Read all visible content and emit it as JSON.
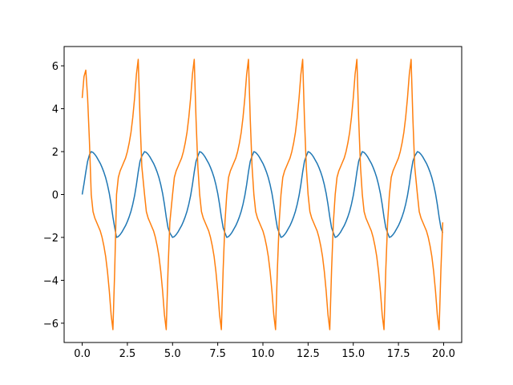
{
  "chart_data": {
    "type": "line",
    "x": [
      0,
      0.1,
      0.2,
      0.3,
      0.4,
      0.5,
      0.6,
      0.7,
      0.8,
      0.9,
      1.0,
      1.1,
      1.2,
      1.3,
      1.4,
      1.5,
      1.6,
      1.7,
      1.8,
      1.9,
      2.0,
      2.1,
      2.2,
      2.3,
      2.4,
      2.5,
      2.6,
      2.7,
      2.8,
      2.9,
      3.0,
      3.1,
      3.2,
      3.3,
      3.45,
      3.55,
      3.65,
      3.75,
      3.85,
      3.95,
      4.05,
      4.15,
      4.25,
      4.35,
      4.45,
      4.55,
      4.65,
      4.75,
      4.85,
      5.0,
      5.1,
      5.2,
      5.3,
      5.4,
      5.5,
      5.6,
      5.7,
      5.8,
      5.9,
      6.0,
      6.1,
      6.2,
      6.3,
      6.4,
      6.5,
      6.6,
      6.7,
      6.8,
      6.9,
      7.0,
      7.1,
      7.2,
      7.3,
      7.4,
      7.5,
      7.6,
      7.7,
      7.8,
      7.9,
      8.0,
      8.1,
      8.2,
      8.3,
      8.4,
      8.5,
      8.6,
      8.7,
      8.8,
      8.9,
      9.0,
      9.1,
      9.2,
      9.3,
      9.4,
      9.5,
      9.6,
      9.7,
      9.8,
      9.9,
      10.0,
      10.1,
      10.2,
      10.3,
      10.4,
      10.5,
      10.6,
      10.7,
      10.8,
      10.9,
      11.0,
      11.1,
      11.2,
      11.3,
      11.4,
      11.5,
      11.6,
      11.7,
      11.8,
      11.9,
      12.0,
      12.1,
      12.2,
      12.3,
      12.4,
      12.5,
      12.6,
      12.7,
      12.8,
      12.9,
      13.0,
      13.1,
      13.2,
      13.3,
      13.4,
      13.5,
      13.6,
      13.7,
      13.8,
      13.9,
      14.0,
      14.1,
      14.2,
      14.3,
      14.4,
      14.5,
      14.6,
      14.7,
      14.8,
      14.9,
      15.0,
      15.1,
      15.2,
      15.3,
      15.4,
      15.5,
      15.6,
      15.7,
      15.8,
      15.9,
      16.0,
      16.1,
      16.2,
      16.3,
      16.4,
      16.5,
      16.6,
      16.7,
      16.8,
      16.9,
      17.0,
      17.1,
      17.2,
      17.3,
      17.4,
      17.5,
      17.6,
      17.7,
      17.8,
      17.9,
      18.0,
      18.1,
      18.2,
      18.3,
      18.4,
      18.55,
      18.65,
      18.75,
      18.85,
      18.95,
      19.05,
      19.15,
      19.25,
      19.35,
      19.45,
      19.55,
      19.65,
      19.75,
      19.85,
      19.95
    ],
    "series": [
      {
        "color": "#1f77b4",
        "values": [
          0,
          0.5,
          1.05,
          1.55,
          1.85,
          2,
          1.96,
          1.87,
          1.75,
          1.6,
          1.45,
          1.26,
          1.04,
          0.78,
          0.45,
          0.05,
          -0.46,
          -1.05,
          -1.55,
          -2,
          -1.96,
          -1.87,
          -1.75,
          -1.6,
          -1.45,
          -1.26,
          -1.04,
          -0.78,
          -0.45,
          -0.05,
          0.46,
          1.05,
          1.55,
          1.79,
          2,
          1.96,
          1.87,
          1.75,
          1.6,
          1.45,
          1.26,
          1.04,
          0.78,
          0.45,
          0.05,
          -0.46,
          -1.05,
          -1.55,
          -1.79,
          -2,
          -1.96,
          -1.87,
          -1.75,
          -1.6,
          -1.45,
          -1.26,
          -1.04,
          -0.78,
          -0.45,
          -0.05,
          0.46,
          1.05,
          1.55,
          1.79,
          2,
          1.96,
          1.87,
          1.75,
          1.6,
          1.45,
          1.26,
          1.04,
          0.78,
          0.45,
          0.05,
          -0.46,
          -1.05,
          -1.55,
          -1.79,
          -2,
          -1.96,
          -1.87,
          -1.75,
          -1.6,
          -1.45,
          -1.26,
          -1.04,
          -0.78,
          -0.45,
          -0.05,
          0.46,
          1.05,
          1.55,
          1.79,
          2,
          1.96,
          1.87,
          1.75,
          1.6,
          1.45,
          1.26,
          1.04,
          0.78,
          0.45,
          0.05,
          -0.46,
          -1.05,
          -1.55,
          -1.79,
          -2,
          -1.96,
          -1.87,
          -1.75,
          -1.6,
          -1.45,
          -1.26,
          -1.04,
          -0.78,
          -0.45,
          -0.05,
          0.46,
          1.05,
          1.55,
          1.79,
          2,
          1.96,
          1.87,
          1.75,
          1.6,
          1.45,
          1.26,
          1.04,
          0.78,
          0.45,
          0.05,
          -0.46,
          -1.05,
          -1.55,
          -1.79,
          -2,
          -1.96,
          -1.87,
          -1.75,
          -1.6,
          -1.45,
          -1.26,
          -1.04,
          -0.78,
          -0.45,
          -0.05,
          0.46,
          1.05,
          1.55,
          1.79,
          2,
          1.96,
          1.87,
          1.75,
          1.6,
          1.45,
          1.26,
          1.04,
          0.78,
          0.45,
          0.05,
          -0.46,
          -1.05,
          -1.55,
          -1.79,
          -2,
          -1.96,
          -1.87,
          -1.75,
          -1.6,
          -1.45,
          -1.26,
          -1.04,
          -0.78,
          -0.45,
          -0.05,
          0.46,
          1.05,
          1.55,
          1.79,
          2,
          1.96,
          1.87,
          1.75,
          1.6,
          1.45,
          1.26,
          1.04,
          0.78,
          0.45,
          0.05,
          -0.46,
          -1.05,
          -1.55,
          -1.79
        ]
      },
      {
        "color": "#ff7f0e",
        "values": [
          4.5,
          5.5,
          5.8,
          4.5,
          2.5,
          0,
          -0.8,
          -1.1,
          -1.3,
          -1.5,
          -1.7,
          -2.0,
          -2.4,
          -2.9,
          -3.6,
          -4.5,
          -5.6,
          -6.3,
          -3.5,
          0,
          0.8,
          1.1,
          1.3,
          1.5,
          1.7,
          2.0,
          2.4,
          2.9,
          3.6,
          4.5,
          5.6,
          6.3,
          3.5,
          1.3,
          0,
          -0.8,
          -1.1,
          -1.3,
          -1.5,
          -1.7,
          -2.0,
          -2.4,
          -2.9,
          -3.6,
          -4.5,
          -5.6,
          -6.3,
          -3.5,
          -1.3,
          0,
          0.8,
          1.1,
          1.3,
          1.5,
          1.7,
          2.0,
          2.4,
          2.9,
          3.6,
          4.5,
          5.6,
          6.3,
          3.5,
          1.3,
          0,
          -0.8,
          -1.1,
          -1.3,
          -1.5,
          -1.7,
          -2.0,
          -2.4,
          -2.9,
          -3.6,
          -4.5,
          -5.6,
          -6.3,
          -3.5,
          -1.3,
          0,
          0.8,
          1.1,
          1.3,
          1.5,
          1.7,
          2.0,
          2.4,
          2.9,
          3.6,
          4.5,
          5.6,
          6.3,
          3.5,
          1.3,
          0,
          -0.8,
          -1.1,
          -1.3,
          -1.5,
          -1.7,
          -2.0,
          -2.4,
          -2.9,
          -3.6,
          -4.5,
          -5.6,
          -6.3,
          -3.5,
          -1.3,
          0,
          0.8,
          1.1,
          1.3,
          1.5,
          1.7,
          2.0,
          2.4,
          2.9,
          3.6,
          4.5,
          5.6,
          6.3,
          3.5,
          1.3,
          0,
          -0.8,
          -1.1,
          -1.3,
          -1.5,
          -1.7,
          -2.0,
          -2.4,
          -2.9,
          -3.6,
          -4.5,
          -5.6,
          -6.3,
          -3.5,
          -1.3,
          0,
          0.8,
          1.1,
          1.3,
          1.5,
          1.7,
          2.0,
          2.4,
          2.9,
          3.6,
          4.5,
          5.6,
          6.3,
          3.5,
          1.3,
          0,
          -0.8,
          -1.1,
          -1.3,
          -1.5,
          -1.7,
          -2.0,
          -2.4,
          -2.9,
          -3.6,
          -4.5,
          -5.6,
          -6.3,
          -3.5,
          -1.3,
          0,
          0.8,
          1.1,
          1.3,
          1.5,
          1.7,
          2.0,
          2.4,
          2.9,
          3.6,
          4.5,
          5.6,
          6.3,
          3.5,
          1.3,
          0,
          -0.8,
          -1.1,
          -1.3,
          -1.5,
          -1.7,
          -2.0,
          -2.4,
          -2.9,
          -3.6,
          -4.5,
          -5.6,
          -6.3,
          -3.5,
          -1.3
        ]
      }
    ],
    "xlim": [
      -1,
      21
    ],
    "ylim": [
      -6.9,
      6.9
    ],
    "xticks": [
      {
        "value": 0,
        "label": "0.0"
      },
      2.5,
      {
        "value": 5,
        "label": "5.0"
      },
      7.5,
      {
        "value": 10,
        "label": "10.0"
      },
      12.5,
      {
        "value": 15,
        "label": "15.0"
      },
      17.5,
      {
        "value": 20,
        "label": "20.0"
      }
    ],
    "yticks": [
      {
        "value": -6,
        "label": "−6"
      },
      {
        "value": -4,
        "label": "−4"
      },
      {
        "value": -2,
        "label": "−2"
      },
      0,
      2,
      4,
      6
    ],
    "grid": false
  }
}
